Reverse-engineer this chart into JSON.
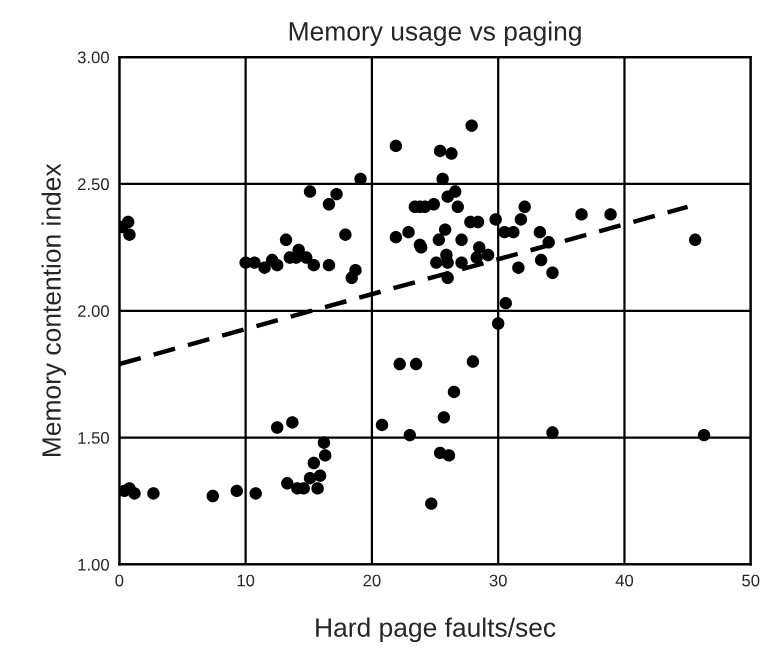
{
  "chart_data": {
    "type": "scatter",
    "title": "Memory usage vs paging",
    "xlabel": "Hard page faults/sec",
    "ylabel": "Memory contention index",
    "xlim": [
      0,
      50
    ],
    "xticks": [
      0,
      10,
      20,
      30,
      40,
      50
    ],
    "ylim": [
      1.0,
      3.0
    ],
    "yticks": [
      {
        "value": 1.0,
        "label": "1.00"
      },
      {
        "value": 1.5,
        "label": "1.50"
      },
      {
        "value": 2.0,
        "label": "2.00"
      },
      {
        "value": 2.5,
        "label": "2.50"
      },
      {
        "value": 3.0,
        "label": "3.00"
      }
    ],
    "grid": true,
    "series": [
      {
        "marker": "circle",
        "color": "#000000",
        "x": [
          0.2,
          0.7,
          0.8,
          0.4,
          0.8,
          1.2,
          2.7,
          7.4,
          9.3,
          10.8,
          12.5,
          13.7,
          13.3,
          14.1,
          14.6,
          15.1,
          15.4,
          15.9,
          15.7,
          16.3,
          16.2,
          20.8,
          22.2,
          23.5,
          23.0,
          24.7,
          25.4,
          26.1,
          25.7,
          26.5,
          28.0,
          30.0,
          34.3,
          46.3,
          27.9,
          25.4,
          26.3,
          25.6,
          26.0,
          26.6,
          26.8,
          23.8,
          24.9,
          27.8,
          28.4,
          29.8,
          31.8,
          32.1,
          36.6,
          38.9,
          45.6,
          25.8,
          30.5,
          31.2,
          33.3,
          34.0,
          25.3,
          27.1,
          23.8,
          28.5,
          25.9,
          29.2,
          25.1,
          26.0,
          27.1,
          28.3,
          33.4,
          31.6,
          34.3,
          26.0,
          30.6,
          10.0,
          10.7,
          11.5,
          12.1,
          12.5,
          13.2,
          13.5,
          14.2,
          14.0,
          14.8,
          15.4,
          16.6,
          15.1,
          16.6,
          17.2,
          17.9,
          18.4,
          18.7,
          19.1,
          21.9,
          21.9,
          22.9,
          23.4,
          24.2,
          23.9
        ],
        "values": [
          2.33,
          2.35,
          2.3,
          1.29,
          1.3,
          1.28,
          1.28,
          1.27,
          1.29,
          1.28,
          1.54,
          1.56,
          1.32,
          1.3,
          1.3,
          1.34,
          1.4,
          1.35,
          1.3,
          1.43,
          1.48,
          1.55,
          1.79,
          1.79,
          1.51,
          1.24,
          1.44,
          1.43,
          1.58,
          1.68,
          1.8,
          1.95,
          1.52,
          1.51,
          2.73,
          2.63,
          2.62,
          2.52,
          2.45,
          2.47,
          2.41,
          2.41,
          2.42,
          2.35,
          2.35,
          2.36,
          2.36,
          2.41,
          2.38,
          2.38,
          2.28,
          2.32,
          2.31,
          2.31,
          2.31,
          2.27,
          2.28,
          2.28,
          2.26,
          2.25,
          2.22,
          2.22,
          2.19,
          2.19,
          2.19,
          2.21,
          2.2,
          2.17,
          2.15,
          2.13,
          2.03,
          2.19,
          2.19,
          2.17,
          2.2,
          2.18,
          2.28,
          2.21,
          2.24,
          2.21,
          2.21,
          2.18,
          2.18,
          2.47,
          2.42,
          2.46,
          2.3,
          2.13,
          2.16,
          2.52,
          2.65,
          2.29,
          2.31,
          2.41,
          2.41,
          2.25
        ]
      },
      {
        "type": "line",
        "color": "#000000",
        "line_style": "dashed",
        "x": [
          0,
          45
        ],
        "values": [
          1.79,
          2.41
        ]
      }
    ]
  }
}
